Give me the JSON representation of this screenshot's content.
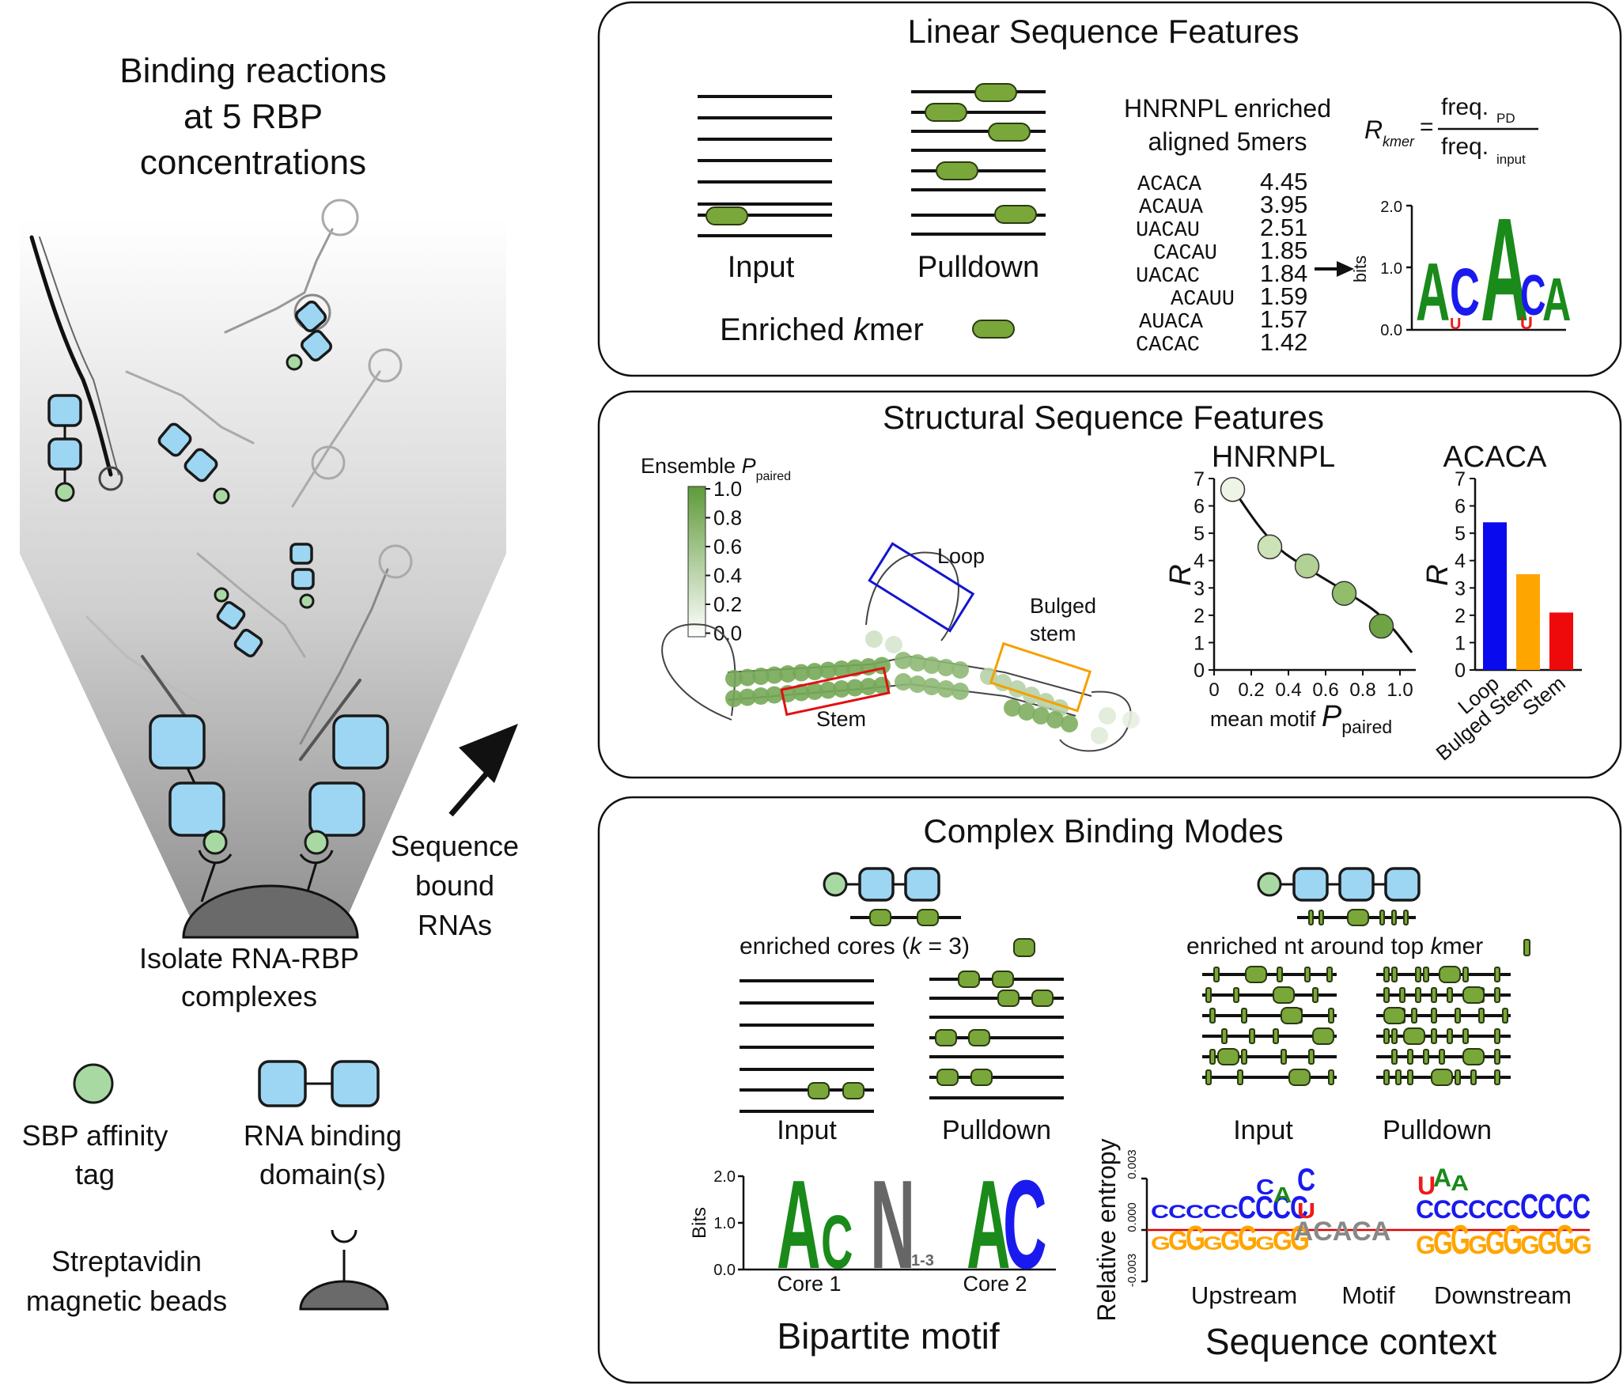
{
  "left": {
    "title_lines": [
      "Binding reactions",
      "at 5 RBP",
      "concentrations"
    ],
    "isolate_lines": [
      "Isolate RNA-RBP",
      "complexes"
    ],
    "arrow_label_lines": [
      "Sequence",
      "bound",
      "RNAs"
    ],
    "legend": {
      "sbp_lines": [
        "SBP affinity",
        "tag"
      ],
      "rbd_lines": [
        "RNA binding",
        "domain(s)"
      ],
      "beads_lines": [
        "Streptavidin",
        "magnetic beads"
      ]
    }
  },
  "linear": {
    "title": "Linear Sequence Features",
    "input_label": "Input",
    "pulldown_label": "Pulldown",
    "enriched_prefix": "Enriched ",
    "enriched_italic": "k",
    "enriched_suffix": "mer",
    "table_title_lines": [
      "HNRNPL enriched",
      "aligned 5mers"
    ],
    "kmers": [
      {
        "seq": "ACACA",
        "val": "4.45"
      },
      {
        "seq": "ACAUA",
        "val": "3.95"
      },
      {
        "seq": "UACAU",
        "val": "2.51"
      },
      {
        "seq": "CACAU",
        "val": "1.85"
      },
      {
        "seq": "UACAC",
        "val": "1.84"
      },
      {
        "seq": "ACAUU",
        "val": "1.59"
      },
      {
        "seq": "AUACA",
        "val": "1.57"
      },
      {
        "seq": "CACAC",
        "val": "1.42"
      }
    ],
    "formula": {
      "r": "R",
      "r_sub": "kmer",
      "eq": "=",
      "num": "freq.",
      "num_sub": "PD",
      "den": "freq.",
      "den_sub": "input"
    },
    "logo": {
      "ylabel": "bits",
      "ticks": [
        "2.0",
        "1.0",
        "0.0"
      ],
      "letters": [
        "A",
        "C",
        "A",
        "C",
        "A"
      ],
      "low_letters": [
        "U",
        "U"
      ]
    }
  },
  "structural": {
    "title": "Structural Sequence Features",
    "colorbar": {
      "label": "Ensemble ",
      "label_italic": "P",
      "label_sub": "paired",
      "ticks": [
        "1.0",
        "0.8",
        "0.6",
        "0.4",
        "0.2",
        "0.0"
      ]
    },
    "box_labels": {
      "loop": "Loop",
      "bulged_lines": [
        "Bulged",
        "stem"
      ],
      "stem": "Stem"
    },
    "scatter": {
      "title": "HNRNPL",
      "ylabel": "R",
      "xlabel": "mean motif ",
      "xlabel_italic": "P",
      "xlabel_sub": "paired",
      "yticks": [
        "0",
        "1",
        "2",
        "3",
        "4",
        "5",
        "6",
        "7"
      ],
      "xticks": [
        "0",
        "0.2",
        "0.4",
        "0.6",
        "0.8",
        "1.0"
      ]
    },
    "bar": {
      "title": "ACACA",
      "ylabel": "R",
      "yticks": [
        "0",
        "1",
        "2",
        "3",
        "4",
        "5",
        "6",
        "7"
      ],
      "categories": [
        "Loop",
        "Bulged Stem",
        "Stem"
      ]
    }
  },
  "complex": {
    "title": "Complex Binding Modes",
    "cores_label_pre": "enriched cores (",
    "cores_label_k": "k",
    "cores_label_post": " = 3)",
    "nt_label_pre": "enriched nt around top ",
    "nt_label_k": "k",
    "nt_label_post": "mer",
    "input_label": "Input",
    "pulldown_label": "Pulldown",
    "bipartite": {
      "ylabel": "Bits",
      "ticks": [
        "2.0",
        "1.0",
        "0.0"
      ],
      "letters": [
        "A",
        "C",
        "N",
        "A",
        "C"
      ],
      "gap": "1-3",
      "core1": "Core 1",
      "core2": "Core 2",
      "caption": "Bipartite motif"
    },
    "context": {
      "ylabel": "Relative entropy",
      "ticks": [
        "0.003",
        "0.000",
        "-0.003"
      ],
      "motif_text": "ACACA",
      "upstream": "Upstream",
      "motif": "Motif",
      "downstream": "Downstream",
      "caption": "Sequence context"
    }
  },
  "chart_data": [
    {
      "type": "scatter",
      "title": "HNRNPL",
      "xlabel": "mean motif Ppaired",
      "ylabel": "R",
      "x": [
        0.1,
        0.3,
        0.5,
        0.7,
        0.9
      ],
      "y": [
        6.6,
        4.5,
        3.8,
        2.8,
        1.6
      ],
      "xlim": [
        0,
        1.0
      ],
      "ylim": [
        0,
        7
      ],
      "colors": [
        "#eef4e6",
        "#cde2b7",
        "#b2d194",
        "#92bd6a",
        "#6ea444"
      ]
    },
    {
      "type": "bar",
      "title": "ACACA",
      "ylabel": "R",
      "categories": [
        "Loop",
        "Bulged Stem",
        "Stem"
      ],
      "values": [
        5.4,
        3.5,
        2.1
      ],
      "ylim": [
        0,
        7
      ],
      "colors": [
        "#0a0aee",
        "#ffa500",
        "#ee0a0a"
      ]
    }
  ]
}
